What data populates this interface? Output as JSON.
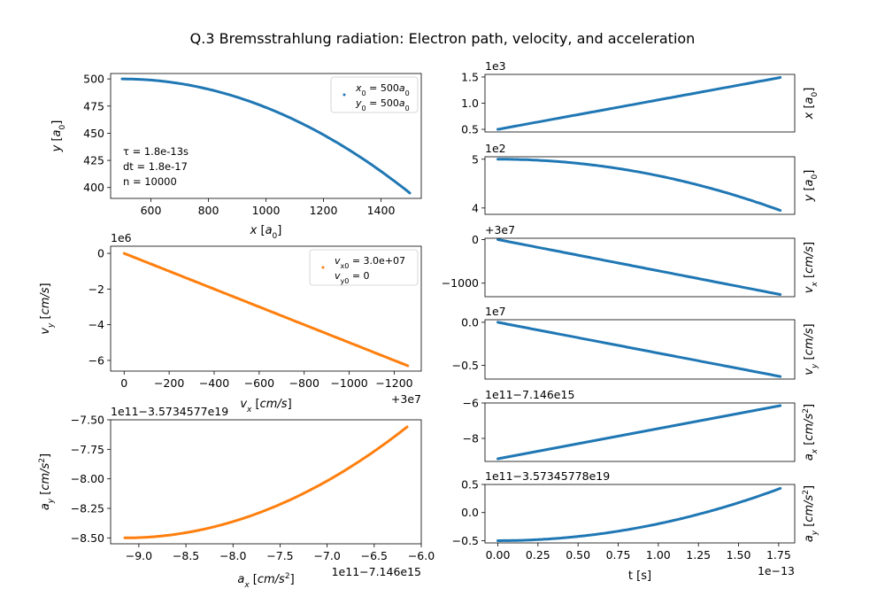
{
  "title": "Q.3 Bremsstrahlung radiation: Electron path, velocity, and acceleration",
  "colors": {
    "blue": "#1f77b4",
    "orange": "#ff7f0e"
  },
  "chart_data": [
    {
      "id": "xy",
      "type": "scatter",
      "xlabel": "x [a0]",
      "ylabel": "y [a0]",
      "xlim": [
        460,
        1540
      ],
      "ylim": [
        390,
        505
      ],
      "xticks": [
        {
          "v": 600,
          "t": "600"
        },
        {
          "v": 800,
          "t": "800"
        },
        {
          "v": 1000,
          "t": "1000"
        },
        {
          "v": 1200,
          "t": "1200"
        },
        {
          "v": 1400,
          "t": "1400"
        }
      ],
      "yticks": [
        {
          "v": 400,
          "t": "400"
        },
        {
          "v": 425,
          "t": "425"
        },
        {
          "v": 450,
          "t": "450"
        },
        {
          "v": 475,
          "t": "475"
        },
        {
          "v": 500,
          "t": "500"
        }
      ],
      "curve": {
        "kind": "parabola",
        "x0": 500,
        "x1": 1500,
        "y0": 500,
        "y1": 395
      },
      "legend": [
        "x0 = 500a0",
        "y0 = 500a0"
      ],
      "annotations": [
        "τ = 1.8e-13s",
        "dt = 1.8e-17",
        "n = 10000"
      ]
    },
    {
      "id": "vxvy",
      "type": "scatter",
      "xlabel": "vx [cm/s]",
      "ylabel": "vy [cm/s]",
      "xlim": [
        60,
        -1320
      ],
      "ylim": [
        -6.6,
        0.4
      ],
      "offset_x": "+3e7",
      "offset_y": "1e6",
      "xticks": [
        {
          "v": 0,
          "t": "0"
        },
        {
          "v": -200,
          "t": "−200"
        },
        {
          "v": -400,
          "t": "−400"
        },
        {
          "v": -600,
          "t": "−600"
        },
        {
          "v": -800,
          "t": "−800"
        },
        {
          "v": -1000,
          "t": "−1000"
        },
        {
          "v": -1200,
          "t": "−1200"
        }
      ],
      "yticks": [
        {
          "v": 0,
          "t": "0"
        },
        {
          "v": -2,
          "t": "−2"
        },
        {
          "v": -4,
          "t": "−4"
        },
        {
          "v": -6,
          "t": "−6"
        }
      ],
      "curve": {
        "kind": "line",
        "x0": 0,
        "x1": -1260,
        "y0": 0,
        "y1": -6.3
      },
      "legend": [
        "vx0 = 3.0e+07",
        "vy0 = 0"
      ]
    },
    {
      "id": "axay",
      "type": "scatter",
      "xlabel": "ax [cm/s2]",
      "ylabel": "ay [cm/s2]",
      "xlim": [
        -9.3,
        -6.0
      ],
      "ylim": [
        -8.55,
        -7.5
      ],
      "offset_x": "1e11−7.146e15",
      "offset_y": "1e11−3.5734577e19",
      "xticks": [
        {
          "v": -9,
          "t": "−9.0"
        },
        {
          "v": -8.5,
          "t": "−8.5"
        },
        {
          "v": -8,
          "t": "−8.0"
        },
        {
          "v": -7.5,
          "t": "−7.5"
        },
        {
          "v": -7,
          "t": "−7.0"
        },
        {
          "v": -6.5,
          "t": "−6.5"
        },
        {
          "v": -6,
          "t": "−6.0"
        }
      ],
      "yticks": [
        {
          "v": -8.5,
          "t": "−8.50"
        },
        {
          "v": -8.25,
          "t": "−8.25"
        },
        {
          "v": -8,
          "t": "−8.00"
        },
        {
          "v": -7.75,
          "t": "−7.75"
        },
        {
          "v": -7.5,
          "t": "−7.50"
        }
      ],
      "curve": {
        "kind": "parabola",
        "x0": -9.15,
        "x1": -6.15,
        "y0": -8.5,
        "y1": -7.56
      }
    },
    {
      "id": "tx",
      "type": "line",
      "ylabel": "x [a0]",
      "xlim": [
        -0.08,
        1.85
      ],
      "ylim": [
        0.45,
        1.55
      ],
      "offset_y": "1e3",
      "yticks": [
        {
          "v": 0.5,
          "t": "0.5"
        },
        {
          "v": 1.0,
          "t": "1.0"
        },
        {
          "v": 1.5,
          "t": "1.5"
        }
      ],
      "curve": {
        "kind": "line",
        "x0": 0,
        "x1": 1.76,
        "y0": 0.5,
        "y1": 1.49
      }
    },
    {
      "id": "ty",
      "type": "line",
      "ylabel": "y [a0]",
      "xlim": [
        -0.08,
        1.85
      ],
      "ylim": [
        3.87,
        5.05
      ],
      "offset_y": "1e2",
      "yticks": [
        {
          "v": 4,
          "t": "4"
        },
        {
          "v": 5,
          "t": "5"
        }
      ],
      "curve": {
        "kind": "parabola",
        "x0": 0,
        "x1": 1.76,
        "y0": 5.0,
        "y1": 3.95
      }
    },
    {
      "id": "tvx",
      "type": "line",
      "ylabel": "vx [cm/s]",
      "xlim": [
        -0.08,
        1.85
      ],
      "ylim": [
        -1310,
        30
      ],
      "offset_y": "+3e7",
      "yticks": [
        {
          "v": 0,
          "t": "0"
        },
        {
          "v": -1000,
          "t": "−1000"
        }
      ],
      "curve": {
        "kind": "line",
        "x0": 0,
        "x1": 1.76,
        "y0": 0,
        "y1": -1260
      }
    },
    {
      "id": "tvy",
      "type": "line",
      "ylabel": "vy [cm/s]",
      "xlim": [
        -0.08,
        1.85
      ],
      "ylim": [
        -0.66,
        0.03
      ],
      "offset_y": "1e7",
      "yticks": [
        {
          "v": 0,
          "t": "0.0"
        },
        {
          "v": -0.5,
          "t": "−0.5"
        }
      ],
      "curve": {
        "kind": "line",
        "x0": 0,
        "x1": 1.76,
        "y0": 0,
        "y1": -0.63
      }
    },
    {
      "id": "tax",
      "type": "line",
      "ylabel": "ax [cm/s2]",
      "xlim": [
        -0.08,
        1.85
      ],
      "ylim": [
        -9.3,
        -6.0
      ],
      "offset_y": "1e11−7.146e15",
      "yticks": [
        {
          "v": -8,
          "t": "−8"
        },
        {
          "v": -6,
          "t": "−6"
        }
      ],
      "curve": {
        "kind": "line",
        "x0": 0,
        "x1": 1.76,
        "y0": -9.15,
        "y1": -6.15
      }
    },
    {
      "id": "tay",
      "type": "line",
      "ylabel": "ay [cm/s2]",
      "xlabel": "t [s]",
      "xlim": [
        -0.08,
        1.85
      ],
      "ylim": [
        -0.54,
        0.5
      ],
      "offset_y": "1e11−3.57345778e19",
      "offset_x": "1e−13",
      "xticks": [
        {
          "v": 0,
          "t": "0.00"
        },
        {
          "v": 0.25,
          "t": "0.25"
        },
        {
          "v": 0.5,
          "t": "0.50"
        },
        {
          "v": 0.75,
          "t": "0.75"
        },
        {
          "v": 1.0,
          "t": "1.00"
        },
        {
          "v": 1.25,
          "t": "1.25"
        },
        {
          "v": 1.5,
          "t": "1.50"
        },
        {
          "v": 1.75,
          "t": "1.75"
        }
      ],
      "yticks": [
        {
          "v": -0.5,
          "t": "−0.5"
        },
        {
          "v": 0,
          "t": "0.0"
        },
        {
          "v": 0.5,
          "t": "0.5"
        }
      ],
      "curve": {
        "kind": "parabola",
        "x0": 0,
        "x1": 1.76,
        "y0": -0.5,
        "y1": 0.43
      }
    }
  ]
}
